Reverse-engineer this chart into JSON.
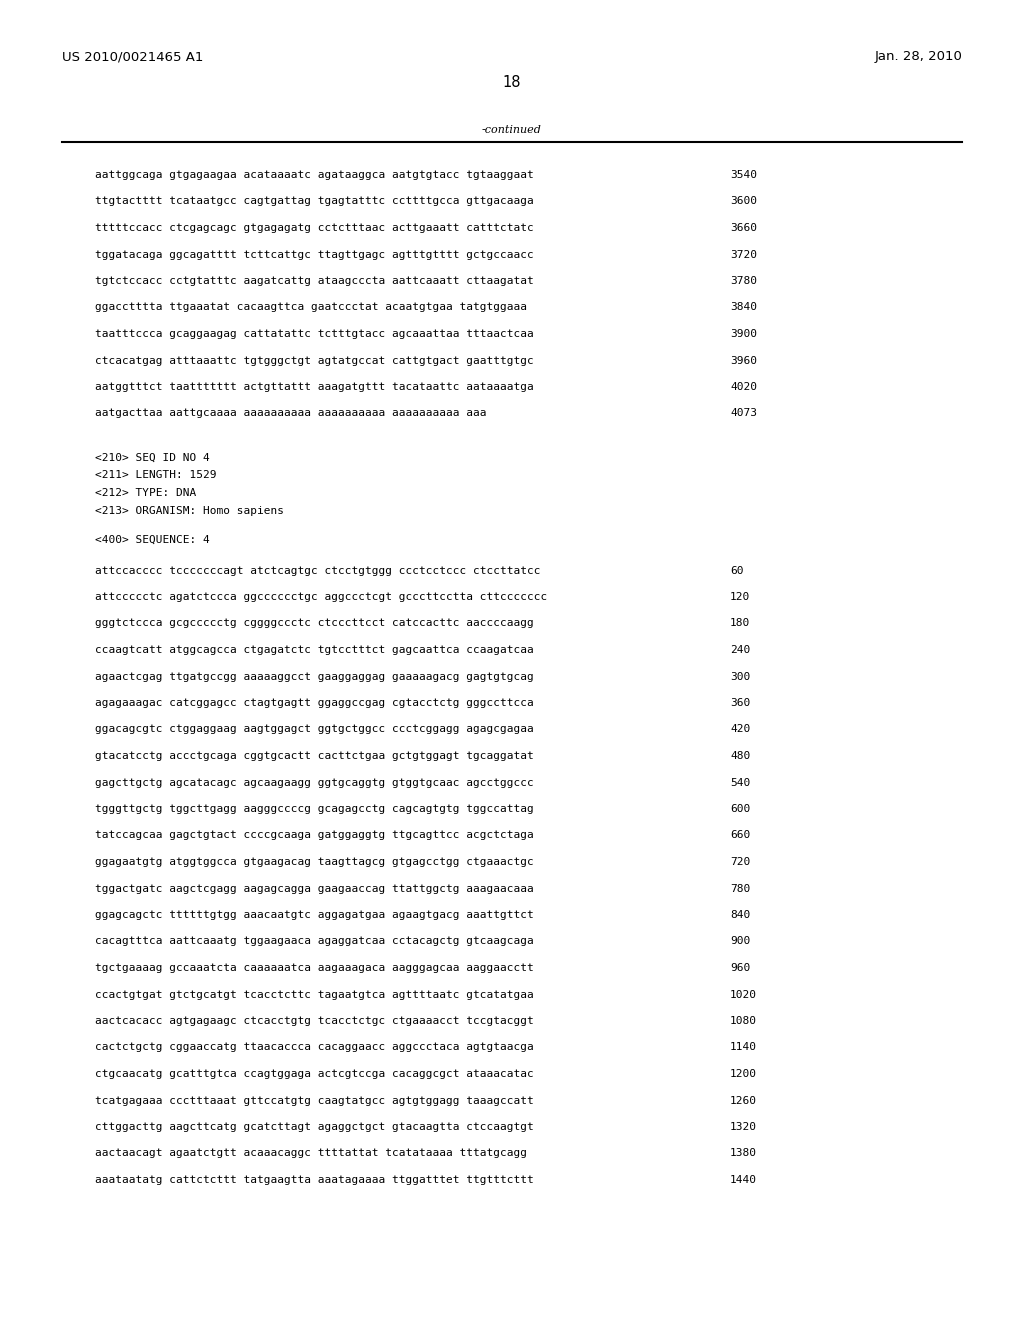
{
  "header_left": "US 2010/0021465 A1",
  "header_right": "Jan. 28, 2010",
  "page_number": "18",
  "continued_label": "-continued",
  "background_color": "#ffffff",
  "text_color": "#000000",
  "sequence_lines_top": [
    [
      "aattggcaga gtgagaagaa acataaaatc agataaggca aatgtgtacc tgtaaggaat",
      "3540"
    ],
    [
      "ttgtactttt tcataatgcc cagtgattag tgagtatttc ccttttgcca gttgacaaga",
      "3600"
    ],
    [
      "tttttccacc ctcgagcagc gtgagagatg cctctttaac acttgaaatt catttctatc",
      "3660"
    ],
    [
      "tggatacaga ggcagatttt tcttcattgc ttagttgagc agtttgtttt gctgccaacc",
      "3720"
    ],
    [
      "tgtctccacc cctgtatttc aagatcattg ataagcccta aattcaaatt cttaagatat",
      "3780"
    ],
    [
      "ggacctttta ttgaaatat cacaagttca gaatccctat acaatgtgaa tatgtggaaa",
      "3840"
    ],
    [
      "taatttccca gcaggaagag cattatattc tctttgtacc agcaaattaa tttaactcaa",
      "3900"
    ],
    [
      "ctcacatgag atttaaattc tgtgggctgt agtatgccat cattgtgact gaatttgtgc",
      "3960"
    ],
    [
      "aatggtttct taattttttt actgttattt aaagatgttt tacataattc aataaaatga",
      "4020"
    ],
    [
      "aatgacttaa aattgcaaaa aaaaaaaaaa aaaaaaaaaa aaaaaaaaaa aaa",
      "4073"
    ]
  ],
  "metadata_lines": [
    "<210> SEQ ID NO 4",
    "<211> LENGTH: 1529",
    "<212> TYPE: DNA",
    "<213> ORGANISM: Homo sapiens"
  ],
  "sequence400_label": "<400> SEQUENCE: 4",
  "sequence_lines_bottom": [
    [
      "attccacccc tcccccccagt atctcagtgc ctcctgtggg ccctcctccc ctccttatcc",
      "60"
    ],
    [
      "attccccctc agatctccca ggcccccctgc aggccctcgt gcccttcctta cttccccccc",
      "120"
    ],
    [
      "gggtctccca gcgccccctg cggggccctc ctcccttcct catccacttc aaccccaagg",
      "180"
    ],
    [
      "ccaagtcatt atggcagcca ctgagatctc tgtcctttct gagcaattca ccaagatcaa",
      "240"
    ],
    [
      "agaactcgag ttgatgccgg aaaaaggcct gaaggaggag gaaaaagacg gagtgtgcag",
      "300"
    ],
    [
      "agagaaagac catcggagcc ctagtgagtt ggaggccgag cgtacctctg gggccttcca",
      "360"
    ],
    [
      "ggacagcgtc ctggaggaag aagtggagct ggtgctggcc ccctcggagg agagcgagaa",
      "420"
    ],
    [
      "gtacatcctg accctgcaga cggtgcactt cacttctgaa gctgtggagt tgcaggatat",
      "480"
    ],
    [
      "gagcttgctg agcatacagc agcaagaagg ggtgcaggtg gtggtgcaac agcctggccc",
      "540"
    ],
    [
      "tgggttgctg tggcttgagg aagggccccg gcagagcctg cagcagtgtg tggccattag",
      "600"
    ],
    [
      "tatccagcaa gagctgtact ccccgcaaga gatggaggtg ttgcagttcc acgctctaga",
      "660"
    ],
    [
      "ggagaatgtg atggtggcca gtgaagacag taagttagcg gtgagcctgg ctgaaactgc",
      "720"
    ],
    [
      "tggactgatc aagctcgagg aagagcagga gaagaaccag ttattggctg aaagaacaaa",
      "780"
    ],
    [
      "ggagcagctc ttttttgtgg aaacaatgtc aggagatgaa agaagtgacg aaattgttct",
      "840"
    ],
    [
      "cacagtttca aattcaaatg tggaagaaca agaggatcaa cctacagctg gtcaagcaga",
      "900"
    ],
    [
      "tgctgaaaag gccaaatcta caaaaaatca aagaaagaca aagggagcaa aaggaacctt",
      "960"
    ],
    [
      "ccactgtgat gtctgcatgt tcacctcttc tagaatgtca agttttaatc gtcatatgaa",
      "1020"
    ],
    [
      "aactcacacc agtgagaagc ctcacctgtg tcacctctgc ctgaaaacct tccgtacggt",
      "1080"
    ],
    [
      "cactctgctg cggaaccatg ttaacaccca cacaggaacc aggccctaca agtgtaacga",
      "1140"
    ],
    [
      "ctgcaacatg gcatttgtca ccagtggaga actcgtccga cacaggcgct ataaacatac",
      "1200"
    ],
    [
      "tcatgagaaa ccctttaaat gttccatgtg caagtatgcc agtgtggagg taaagccatt",
      "1260"
    ],
    [
      "cttggacttg aagcttcatg gcatcttagt agaggctgct gtacaagtta ctccaagtgt",
      "1320"
    ],
    [
      "aactaacagt agaatctgtt acaaacaggc ttttattat tcatataaaa tttatgcagg",
      "1380"
    ],
    [
      "aaataatatg cattctcttt tatgaagtta aaatagaaaa ttggatttet ttgtttcttt",
      "1440"
    ]
  ]
}
